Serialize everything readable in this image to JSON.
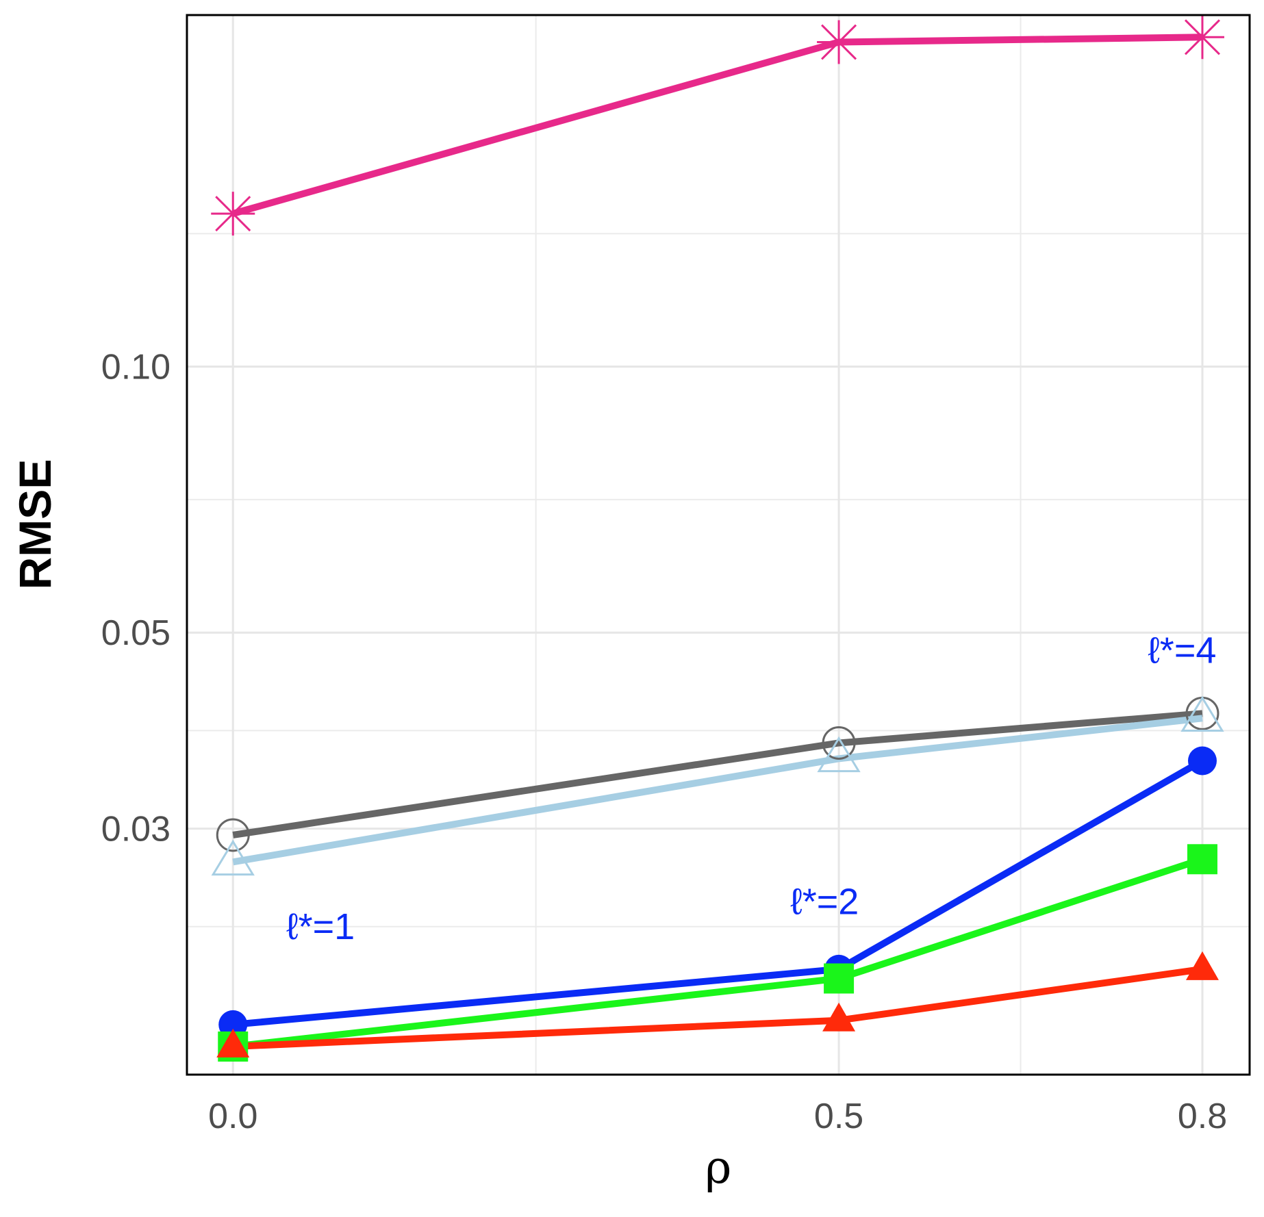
{
  "chart_data": {
    "type": "line",
    "title": "",
    "xlabel": "ρ",
    "ylabel": "RMSE",
    "y_scale": "log",
    "x": [
      0.0,
      0.5,
      0.8
    ],
    "x_tick_labels": [
      "0.0",
      "0.5",
      "0.8"
    ],
    "y_ticks": [
      0.03,
      0.05,
      0.1
    ],
    "y_tick_labels": [
      "0.03",
      "0.05",
      "0.10"
    ],
    "xlim": [
      -0.038,
      0.839
    ],
    "ylim": [
      0.0158,
      0.25
    ],
    "grid": true,
    "series": [
      {
        "name": "magenta-star",
        "color": "#E7298A",
        "marker": "asterisk",
        "values": [
          0.149,
          0.233,
          0.236
        ]
      },
      {
        "name": "gray-open-circle",
        "color": "#666666",
        "marker": "open-circle",
        "values": [
          0.0295,
          0.0375,
          0.0405
        ]
      },
      {
        "name": "lightblue-open-triangle",
        "color": "#A6CEE3",
        "marker": "open-triangle",
        "values": [
          0.0275,
          0.036,
          0.04
        ]
      },
      {
        "name": "blue-circle",
        "color": "#0A2BF5",
        "marker": "filled-circle",
        "values": [
          0.018,
          0.0208,
          0.0358
        ]
      },
      {
        "name": "green-square",
        "color": "#1AF51A",
        "marker": "filled-square",
        "values": [
          0.017,
          0.0203,
          0.0277
        ]
      },
      {
        "name": "red-triangle",
        "color": "#FF2A0A",
        "marker": "filled-triangle",
        "values": [
          0.017,
          0.0182,
          0.0208
        ]
      }
    ],
    "annotations": [
      {
        "text": "ℓ*=1",
        "x": 0.044,
        "y": 0.0225,
        "color": "#0A2BF5"
      },
      {
        "text": "ℓ*=2",
        "x": 0.46,
        "y": 0.024,
        "color": "#0A2BF5"
      },
      {
        "text": "ℓ*=4",
        "x": 0.755,
        "y": 0.0462,
        "color": "#0A2BF5"
      }
    ]
  }
}
